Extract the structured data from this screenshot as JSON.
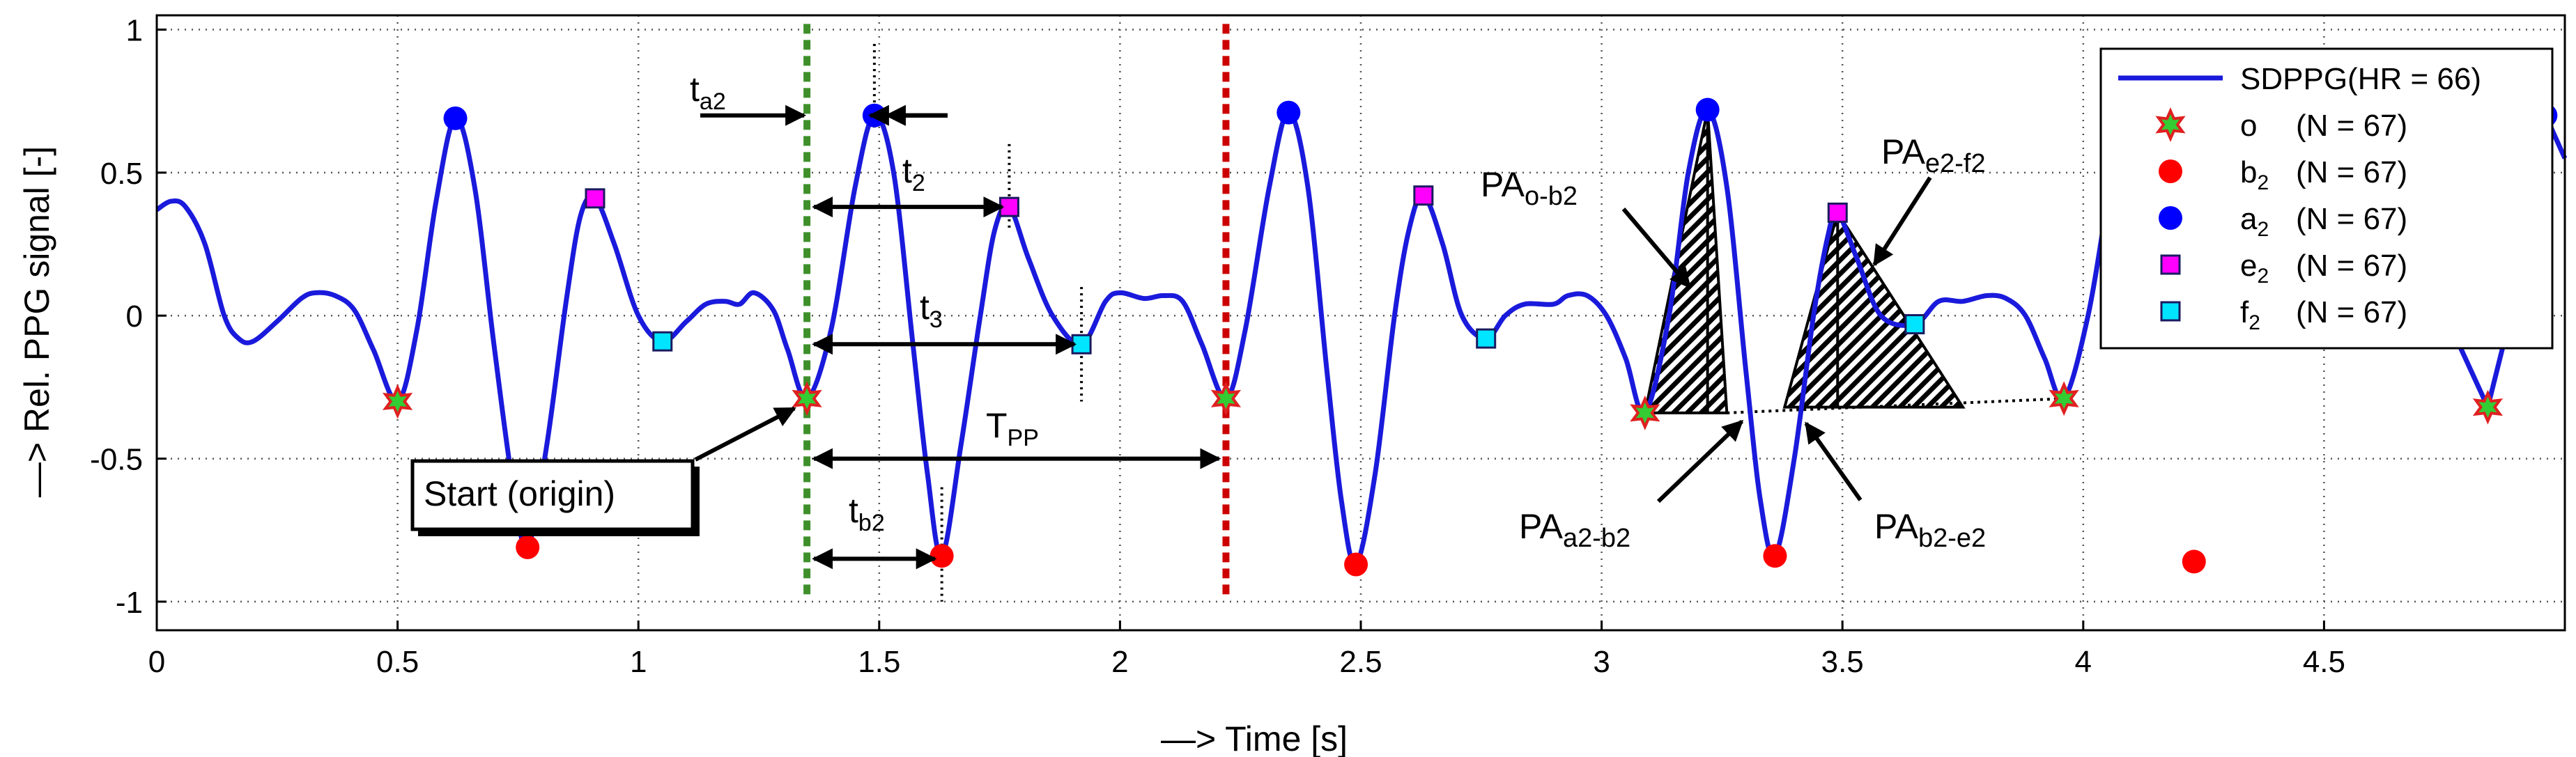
{
  "chart_data": {
    "type": "line",
    "xlabel": "—> Time [s]",
    "ylabel": "—> Rel. PPG signal [-]",
    "xlim": [
      0,
      5.0
    ],
    "ylim": [
      -1.1,
      1.05
    ],
    "grid": true,
    "legend_position": "top-right",
    "x_ticks": [
      0,
      0.5,
      1,
      1.5,
      2,
      2.5,
      3,
      3.5,
      4,
      4.5
    ],
    "x_tick_labels": [
      "0",
      "0.5",
      "1",
      "1.5",
      "2",
      "2.5",
      "3",
      "3.5",
      "4",
      "4.5"
    ],
    "y_ticks": [
      1,
      0.5,
      0,
      -0.5,
      -1
    ],
    "y_tick_labels": [
      "1",
      "0.5",
      "0",
      "-0.5",
      "-1"
    ],
    "colors": {
      "signal": "#1a1adc",
      "o_marker_fill": "#33cc33",
      "o_marker_edge": "#e02020",
      "b2": "#ff0000",
      "a2": "#0000ff",
      "e2": "#ff00ff",
      "f2": "#00e5ff",
      "start_line": "#3e8f2a",
      "end_line": "#cc0000"
    },
    "legend": [
      {
        "key": "signal",
        "label": "SDPPG(HR = 66)",
        "sub": ""
      },
      {
        "key": "o",
        "label": "o",
        "sub": "",
        "count": "(N = 67)"
      },
      {
        "key": "b2",
        "label": "b",
        "sub": "2",
        "count": "(N = 67)"
      },
      {
        "key": "a2",
        "label": "a",
        "sub": "2",
        "count": "(N = 67)"
      },
      {
        "key": "e2",
        "label": "e",
        "sub": "2",
        "count": "(N = 67)"
      },
      {
        "key": "f2",
        "label": "f",
        "sub": "2",
        "count": "(N = 67)"
      }
    ],
    "series_points": [
      {
        "x": 0.0,
        "y": 0.37
      },
      {
        "x": 0.03,
        "y": 0.4
      },
      {
        "x": 0.06,
        "y": 0.38
      },
      {
        "x": 0.1,
        "y": 0.25
      },
      {
        "x": 0.14,
        "y": 0.0
      },
      {
        "x": 0.17,
        "y": -0.08
      },
      {
        "x": 0.2,
        "y": -0.09
      },
      {
        "x": 0.25,
        "y": -0.02
      },
      {
        "x": 0.3,
        "y": 0.06
      },
      {
        "x": 0.33,
        "y": 0.08
      },
      {
        "x": 0.37,
        "y": 0.07
      },
      {
        "x": 0.41,
        "y": 0.02
      },
      {
        "x": 0.45,
        "y": -0.12
      },
      {
        "x": 0.5,
        "y": -0.3
      },
      {
        "x": 0.54,
        "y": -0.05
      },
      {
        "x": 0.58,
        "y": 0.4
      },
      {
        "x": 0.62,
        "y": 0.69
      },
      {
        "x": 0.66,
        "y": 0.45
      },
      {
        "x": 0.7,
        "y": -0.1
      },
      {
        "x": 0.74,
        "y": -0.6
      },
      {
        "x": 0.77,
        "y": -0.81
      },
      {
        "x": 0.81,
        "y": -0.45
      },
      {
        "x": 0.85,
        "y": 0.05
      },
      {
        "x": 0.88,
        "y": 0.35
      },
      {
        "x": 0.91,
        "y": 0.41
      },
      {
        "x": 0.95,
        "y": 0.25
      },
      {
        "x": 1.0,
        "y": 0.0
      },
      {
        "x": 1.05,
        "y": -0.09
      },
      {
        "x": 1.1,
        "y": -0.02
      },
      {
        "x": 1.14,
        "y": 0.04
      },
      {
        "x": 1.18,
        "y": 0.05
      },
      {
        "x": 1.21,
        "y": 0.04
      },
      {
        "x": 1.24,
        "y": 0.08
      },
      {
        "x": 1.28,
        "y": 0.02
      },
      {
        "x": 1.31,
        "y": -0.12
      },
      {
        "x": 1.35,
        "y": -0.29
      },
      {
        "x": 1.4,
        "y": -0.05
      },
      {
        "x": 1.45,
        "y": 0.45
      },
      {
        "x": 1.49,
        "y": 0.7
      },
      {
        "x": 1.53,
        "y": 0.5
      },
      {
        "x": 1.57,
        "y": -0.1
      },
      {
        "x": 1.6,
        "y": -0.55
      },
      {
        "x": 1.63,
        "y": -0.84
      },
      {
        "x": 1.67,
        "y": -0.45
      },
      {
        "x": 1.71,
        "y": 0.0
      },
      {
        "x": 1.74,
        "y": 0.3
      },
      {
        "x": 1.77,
        "y": 0.38
      },
      {
        "x": 1.81,
        "y": 0.2
      },
      {
        "x": 1.86,
        "y": 0.0
      },
      {
        "x": 1.92,
        "y": -0.1
      },
      {
        "x": 1.97,
        "y": 0.05
      },
      {
        "x": 2.0,
        "y": 0.08
      },
      {
        "x": 2.05,
        "y": 0.06
      },
      {
        "x": 2.09,
        "y": 0.07
      },
      {
        "x": 2.13,
        "y": 0.05
      },
      {
        "x": 2.17,
        "y": -0.1
      },
      {
        "x": 2.22,
        "y": -0.29
      },
      {
        "x": 2.26,
        "y": -0.05
      },
      {
        "x": 2.31,
        "y": 0.45
      },
      {
        "x": 2.35,
        "y": 0.71
      },
      {
        "x": 2.39,
        "y": 0.45
      },
      {
        "x": 2.43,
        "y": -0.2
      },
      {
        "x": 2.46,
        "y": -0.65
      },
      {
        "x": 2.49,
        "y": -0.87
      },
      {
        "x": 2.53,
        "y": -0.55
      },
      {
        "x": 2.57,
        "y": 0.0
      },
      {
        "x": 2.6,
        "y": 0.3
      },
      {
        "x": 2.63,
        "y": 0.42
      },
      {
        "x": 2.67,
        "y": 0.25
      },
      {
        "x": 2.71,
        "y": 0.0
      },
      {
        "x": 2.76,
        "y": -0.08
      },
      {
        "x": 2.8,
        "y": 0.0
      },
      {
        "x": 2.84,
        "y": 0.04
      },
      {
        "x": 2.9,
        "y": 0.04
      },
      {
        "x": 2.93,
        "y": 0.07
      },
      {
        "x": 2.97,
        "y": 0.07
      },
      {
        "x": 3.01,
        "y": 0.0
      },
      {
        "x": 3.05,
        "y": -0.15
      },
      {
        "x": 3.09,
        "y": -0.34
      },
      {
        "x": 3.14,
        "y": 0.0
      },
      {
        "x": 3.18,
        "y": 0.5
      },
      {
        "x": 3.22,
        "y": 0.72
      },
      {
        "x": 3.26,
        "y": 0.45
      },
      {
        "x": 3.3,
        "y": -0.2
      },
      {
        "x": 3.33,
        "y": -0.65
      },
      {
        "x": 3.36,
        "y": -0.84
      },
      {
        "x": 3.4,
        "y": -0.5
      },
      {
        "x": 3.44,
        "y": 0.0
      },
      {
        "x": 3.47,
        "y": 0.28
      },
      {
        "x": 3.49,
        "y": 0.36
      },
      {
        "x": 3.53,
        "y": 0.2
      },
      {
        "x": 3.58,
        "y": 0.0
      },
      {
        "x": 3.65,
        "y": -0.03
      },
      {
        "x": 3.7,
        "y": 0.05
      },
      {
        "x": 3.75,
        "y": 0.05
      },
      {
        "x": 3.8,
        "y": 0.07
      },
      {
        "x": 3.84,
        "y": 0.06
      },
      {
        "x": 3.88,
        "y": 0.0
      },
      {
        "x": 3.92,
        "y": -0.15
      },
      {
        "x": 3.96,
        "y": -0.29
      },
      {
        "x": 4.01,
        "y": 0.0
      },
      {
        "x": 4.05,
        "y": 0.4
      }
    ],
    "markers": {
      "o": [
        {
          "x": 0.5,
          "y": -0.3
        },
        {
          "x": 1.35,
          "y": -0.29
        },
        {
          "x": 2.22,
          "y": -0.29
        },
        {
          "x": 3.09,
          "y": -0.34
        },
        {
          "x": 3.96,
          "y": -0.29
        },
        {
          "x": 4.84,
          "y": -0.32
        }
      ],
      "b2": [
        {
          "x": 0.77,
          "y": -0.81
        },
        {
          "x": 1.63,
          "y": -0.84
        },
        {
          "x": 2.49,
          "y": -0.87
        },
        {
          "x": 3.36,
          "y": -0.84
        },
        {
          "x": 4.23,
          "y": -0.86
        }
      ],
      "a2": [
        {
          "x": 0.62,
          "y": 0.69
        },
        {
          "x": 1.49,
          "y": 0.7
        },
        {
          "x": 2.35,
          "y": 0.71
        },
        {
          "x": 3.22,
          "y": 0.72
        },
        {
          "x": 4.96,
          "y": 0.7
        }
      ],
      "e2": [
        {
          "x": 0.91,
          "y": 0.41
        },
        {
          "x": 1.77,
          "y": 0.38
        },
        {
          "x": 2.63,
          "y": 0.42
        },
        {
          "x": 3.49,
          "y": 0.36
        }
      ],
      "f2": [
        {
          "x": 1.05,
          "y": -0.09
        },
        {
          "x": 1.92,
          "y": -0.1
        },
        {
          "x": 2.76,
          "y": -0.08
        },
        {
          "x": 3.65,
          "y": -0.03
        }
      ]
    },
    "start_line_x": 1.35,
    "end_line_x": 2.22,
    "annotations": {
      "t_a2": {
        "main": "t",
        "sub": "a2"
      },
      "t_2": {
        "main": "t",
        "sub": "2"
      },
      "t_3": {
        "main": "t",
        "sub": "3"
      },
      "t_pp": {
        "main": "T",
        "sub": "PP"
      },
      "t_b2": {
        "main": "t",
        "sub": "b2"
      },
      "start": "Start (origin)",
      "pa_o_b2": {
        "main": "PA",
        "sub": "o-b2"
      },
      "pa_e2_f2": {
        "main": "PA",
        "sub": "e2-f2"
      },
      "pa_a2_b2": {
        "main": "PA",
        "sub": "a2-b2"
      },
      "pa_b2_e2": {
        "main": "PA",
        "sub": "b2-e2"
      }
    }
  }
}
